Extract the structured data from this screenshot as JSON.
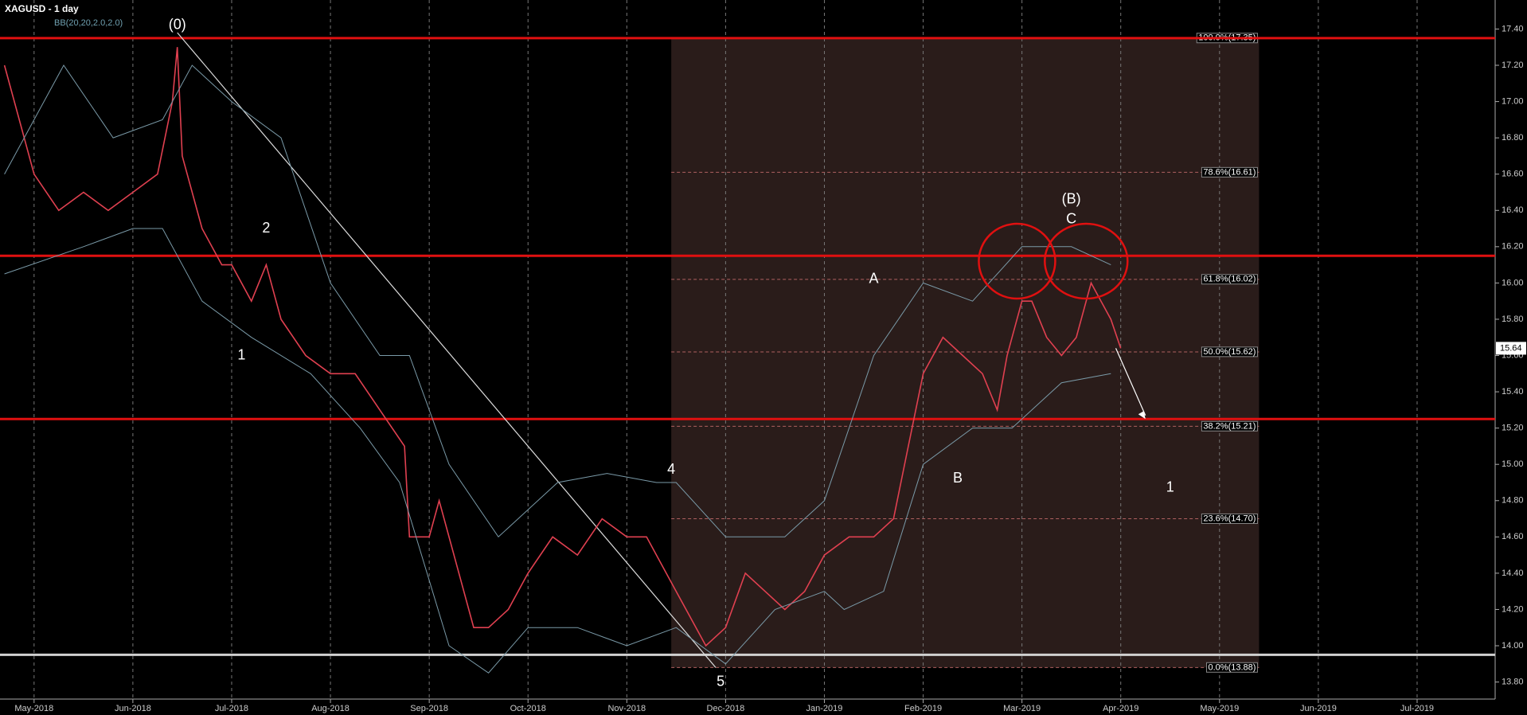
{
  "chart_data": {
    "type": "line",
    "title": "XAGUSD - 1 day",
    "subtitle": "BB(20,20,2.0,2.0)",
    "xlim": [
      -0.345,
      14.79
    ],
    "ylim": [
      13.706,
      17.56
    ],
    "xticks": [
      {
        "value": 0,
        "label": "May-2018"
      },
      {
        "value": 1,
        "label": "Jun-2018"
      },
      {
        "value": 2,
        "label": "Jul-2018"
      },
      {
        "value": 3,
        "label": "Aug-2018"
      },
      {
        "value": 4,
        "label": "Sep-2018"
      },
      {
        "value": 5,
        "label": "Oct-2018"
      },
      {
        "value": 6,
        "label": "Nov-2018"
      },
      {
        "value": 7,
        "label": "Dec-2018"
      },
      {
        "value": 8,
        "label": "Jan-2019"
      },
      {
        "value": 9,
        "label": "Feb-2019"
      },
      {
        "value": 10,
        "label": "Mar-2019"
      },
      {
        "value": 11,
        "label": "Apr-2019"
      },
      {
        "value": 12,
        "label": "May-2019"
      },
      {
        "value": 13,
        "label": "Jun-2019"
      },
      {
        "value": 14,
        "label": "Jul-2019"
      }
    ],
    "yticks": [
      {
        "value": 13.8,
        "label": "13.80"
      },
      {
        "value": 14.0,
        "label": "14.00"
      },
      {
        "value": 14.2,
        "label": "14.20"
      },
      {
        "value": 14.4,
        "label": "14.40"
      },
      {
        "value": 14.6,
        "label": "14.60"
      },
      {
        "value": 14.8,
        "label": "14.80"
      },
      {
        "value": 15.0,
        "label": "15.00"
      },
      {
        "value": 15.2,
        "label": "15.20"
      },
      {
        "value": 15.4,
        "label": "15.40"
      },
      {
        "value": 15.6,
        "label": "15.60"
      },
      {
        "value": 15.8,
        "label": "15.80"
      },
      {
        "value": 16.0,
        "label": "16.00"
      },
      {
        "value": 16.2,
        "label": "16.20"
      },
      {
        "value": 16.4,
        "label": "16.40"
      },
      {
        "value": 16.6,
        "label": "16.60"
      },
      {
        "value": 16.8,
        "label": "16.80"
      },
      {
        "value": 17.0,
        "label": "17.00"
      },
      {
        "value": 17.2,
        "label": "17.20"
      },
      {
        "value": 17.4,
        "label": "17.40"
      }
    ],
    "grid": true,
    "series": [
      {
        "color": "#e04050",
        "x": [
          -0.3,
          0,
          0.25,
          0.5,
          0.75,
          1.0,
          1.25,
          1.4,
          1.45,
          1.5,
          1.7,
          1.9,
          2.0,
          2.2,
          2.35,
          2.5,
          2.75,
          3.0,
          3.25,
          3.5,
          3.75,
          3.8,
          4.0,
          4.1,
          4.25,
          4.45,
          4.6,
          4.8,
          5.0,
          5.25,
          5.5,
          5.75,
          6.0,
          6.2,
          6.5,
          6.8,
          7.0,
          7.2,
          7.4,
          7.6,
          7.8,
          8.0,
          8.25,
          8.5,
          8.7,
          8.85,
          9.0,
          9.2,
          9.4,
          9.6,
          9.75,
          9.85,
          10.0,
          10.1,
          10.25,
          10.4,
          10.55,
          10.7,
          10.8,
          10.9,
          11.0
        ],
        "values": [
          17.2,
          16.6,
          16.4,
          16.5,
          16.4,
          16.5,
          16.6,
          17.0,
          17.3,
          16.7,
          16.3,
          16.1,
          16.1,
          15.9,
          16.1,
          15.8,
          15.6,
          15.5,
          15.5,
          15.3,
          15.1,
          14.6,
          14.6,
          14.8,
          14.5,
          14.1,
          14.1,
          14.2,
          14.4,
          14.6,
          14.5,
          14.7,
          14.6,
          14.6,
          14.3,
          14.0,
          14.1,
          14.4,
          14.3,
          14.2,
          14.3,
          14.5,
          14.6,
          14.6,
          14.7,
          15.1,
          15.5,
          15.7,
          15.6,
          15.5,
          15.3,
          15.6,
          15.9,
          15.9,
          15.7,
          15.6,
          15.7,
          16.0,
          15.9,
          15.8,
          15.64
        ]
      },
      {
        "color": "#7a9aa8",
        "x": [
          -0.3,
          0.3,
          0.8,
          1.3,
          1.6,
          2.0,
          2.5,
          3.0,
          3.5,
          3.8,
          4.2,
          4.7,
          5.3,
          5.8,
          6.3,
          6.5,
          7.0,
          7.6,
          8.0,
          8.5,
          9.0,
          9.5,
          10.0,
          10.5,
          10.9
        ],
        "values": [
          16.6,
          17.2,
          16.8,
          16.9,
          17.2,
          17.0,
          16.8,
          16.0,
          15.6,
          15.6,
          15.0,
          14.6,
          14.9,
          14.95,
          14.9,
          14.9,
          14.6,
          14.6,
          14.8,
          15.6,
          16.0,
          15.9,
          16.2,
          16.2,
          16.1
        ]
      },
      {
        "color": "#7a9aa8",
        "x": [
          -0.3,
          0.5,
          1.0,
          1.3,
          1.7,
          2.2,
          2.8,
          3.3,
          3.7,
          4.2,
          4.6,
          5.0,
          5.5,
          6.0,
          6.5,
          7.0,
          7.5,
          8.0,
          8.2,
          8.6,
          9.0,
          9.5,
          9.9,
          10.4,
          10.9
        ],
        "values": [
          16.05,
          16.2,
          16.3,
          16.3,
          15.9,
          15.7,
          15.5,
          15.2,
          14.9,
          14.0,
          13.85,
          14.1,
          14.1,
          14.0,
          14.1,
          13.9,
          14.2,
          14.3,
          14.2,
          14.3,
          15.0,
          15.2,
          15.2,
          15.45,
          15.5
        ]
      }
    ],
    "hlines": [
      {
        "value": 17.35,
        "color": "#e01010"
      },
      {
        "value": 16.15,
        "color": "#e01010"
      },
      {
        "value": 15.25,
        "color": "#e01010"
      },
      {
        "value": 13.95,
        "color": "#d0d0d0"
      }
    ],
    "fib": {
      "x": [
        6.45,
        12.4
      ],
      "levels": [
        {
          "value": 17.35,
          "label": "100.0%(17.35)"
        },
        {
          "value": 16.61,
          "label": "78.6%(16.61)"
        },
        {
          "value": 16.02,
          "label": "61.8%(16.02)"
        },
        {
          "value": 15.62,
          "label": "50.0%(15.62)"
        },
        {
          "value": 15.21,
          "label": "38.2%(15.21)"
        },
        {
          "value": 14.7,
          "label": "23.6%(14.70)"
        },
        {
          "value": 13.88,
          "label": "0.0%(13.88)"
        }
      ]
    },
    "last_price": {
      "value": 15.64,
      "label": "15.64"
    },
    "annotations": [
      {
        "text": "(0)",
        "x": 1.45,
        "y": 17.42
      },
      {
        "text": "1",
        "x": 2.1,
        "y": 15.6
      },
      {
        "text": "2",
        "x": 2.35,
        "y": 16.3
      },
      {
        "text": "4",
        "x": 6.45,
        "y": 14.97
      },
      {
        "text": "5",
        "x": 6.95,
        "y": 13.8
      },
      {
        "text": "A",
        "x": 8.5,
        "y": 16.02
      },
      {
        "text": "B",
        "x": 9.35,
        "y": 14.92
      },
      {
        "text": "(B)",
        "x": 10.5,
        "y": 16.46
      },
      {
        "text": "C",
        "x": 10.5,
        "y": 16.35
      },
      {
        "text": "1",
        "x": 11.5,
        "y": 14.87
      }
    ]
  }
}
